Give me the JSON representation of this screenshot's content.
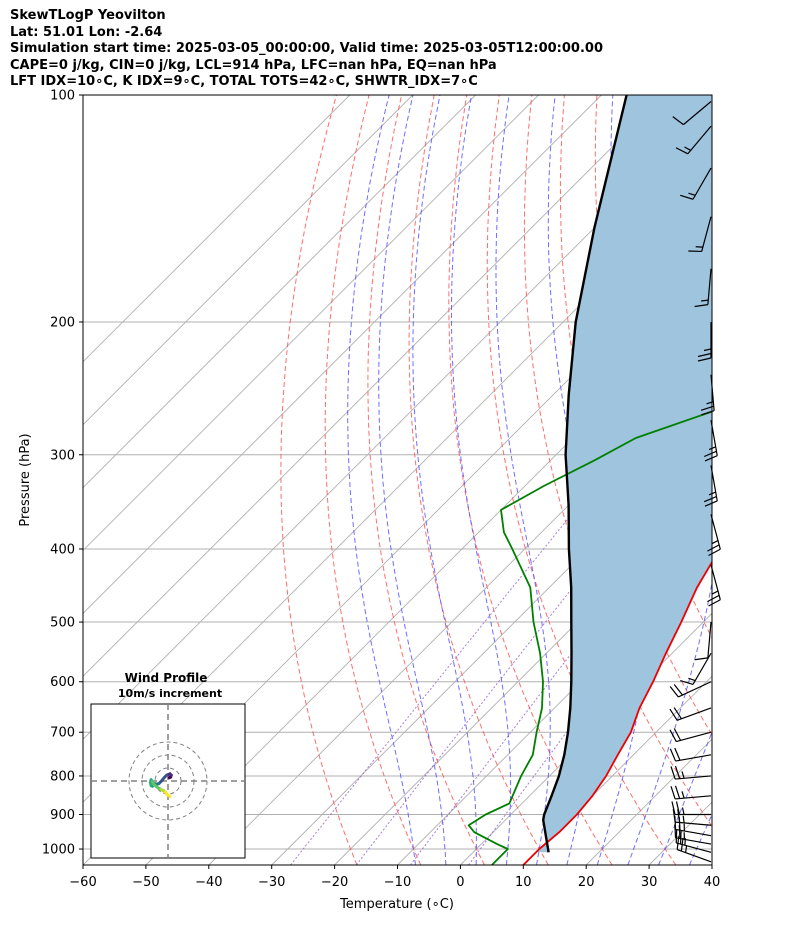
{
  "chart_data": {
    "type": "skew-t log-p",
    "title_lines": [
      "SkewTLogP Yeovilton",
      "Lat: 51.01   Lon: -2.64",
      "Simulation start time: 2025-03-05_00:00:00, Valid time: 2025-03-05T12:00:00.00",
      "CAPE=0 j/kg, CIN=0 j/kg, LCL=914 hPa, LFC=nan hPa, EQ=nan hPa",
      "LFT IDX=10∘C, K IDX=9∘C, TOTAL TOTS=42∘C, SHWTR_IDX=7∘C"
    ],
    "xlabel": "Temperature (∘C)",
    "ylabel": "Pressure (hPa)",
    "xlim": [
      -60,
      40
    ],
    "ylim_hpa": [
      1050,
      100
    ],
    "x_ticks": [
      -60,
      -50,
      -40,
      -30,
      -20,
      -10,
      0,
      10,
      20,
      30,
      40
    ],
    "y_ticks": [
      1000,
      900,
      800,
      700,
      600,
      500,
      400,
      300,
      200,
      100
    ],
    "grid": true,
    "series": [
      {
        "role": "temperature",
        "color": "#ee0000",
        "points": [
          [
            1050,
            10
          ],
          [
            1000,
            10
          ],
          [
            950,
            10.5
          ],
          [
            900,
            10.5
          ],
          [
            850,
            10
          ],
          [
            800,
            9
          ],
          [
            750,
            7.5
          ],
          [
            700,
            6
          ],
          [
            650,
            3.5
          ],
          [
            600,
            1.5
          ],
          [
            550,
            -1
          ],
          [
            500,
            -3.5
          ],
          [
            450,
            -6.5
          ],
          [
            400,
            -9
          ],
          [
            350,
            -12
          ],
          [
            300,
            -16.5
          ],
          [
            260,
            -21
          ],
          [
            230,
            -24.5
          ],
          [
            200,
            -28.5
          ],
          [
            185,
            -32.5
          ],
          [
            170,
            -37
          ],
          [
            150,
            -41
          ],
          [
            135,
            -44.5
          ],
          [
            120,
            -48
          ],
          [
            110,
            -50
          ],
          [
            100,
            -51
          ]
        ]
      },
      {
        "role": "dewpoint",
        "color": "#008000",
        "points": [
          [
            1050,
            5
          ],
          [
            1000,
            5
          ],
          [
            985,
            2.5
          ],
          [
            950,
            -3
          ],
          [
            930,
            -5
          ],
          [
            900,
            -4
          ],
          [
            870,
            -2
          ],
          [
            800,
            -4.5
          ],
          [
            750,
            -6
          ],
          [
            700,
            -9
          ],
          [
            650,
            -12
          ],
          [
            600,
            -16
          ],
          [
            550,
            -21
          ],
          [
            500,
            -27
          ],
          [
            450,
            -33
          ],
          [
            400,
            -42
          ],
          [
            380,
            -46
          ],
          [
            355,
            -50
          ],
          [
            330,
            -47
          ],
          [
            305,
            -43
          ],
          [
            285,
            -40
          ],
          [
            260,
            -31
          ],
          [
            240,
            -18.5
          ],
          [
            225,
            -21
          ],
          [
            210,
            -28
          ],
          [
            200,
            -36.5
          ],
          [
            180,
            -33.5
          ],
          [
            170,
            -34.5
          ],
          [
            155,
            -32.5
          ],
          [
            140,
            -35
          ],
          [
            120,
            -38
          ],
          [
            100,
            -41.5
          ]
        ]
      },
      {
        "role": "parcel",
        "color": "#000000",
        "points": [
          [
            1010,
            12
          ],
          [
            915,
            6
          ],
          [
            900,
            5.3
          ],
          [
            850,
            3.5
          ],
          [
            800,
            1.5
          ],
          [
            750,
            -1
          ],
          [
            700,
            -4
          ],
          [
            650,
            -7.5
          ],
          [
            600,
            -11.5
          ],
          [
            550,
            -16
          ],
          [
            500,
            -21
          ],
          [
            450,
            -26.5
          ],
          [
            400,
            -33
          ],
          [
            350,
            -40
          ],
          [
            300,
            -48.5
          ],
          [
            250,
            -57.5
          ],
          [
            200,
            -68
          ],
          [
            150,
            -80
          ],
          [
            100,
            -96
          ]
        ]
      }
    ],
    "shaded_region": "area between temperature and parcel curves",
    "dry_adiabats_theta_c": [
      -20,
      -10,
      0,
      10,
      20,
      30,
      40,
      50,
      60,
      70,
      80,
      90,
      100,
      110,
      120,
      130
    ],
    "moist_adiabats_c": [
      -10,
      -5,
      0,
      5,
      10,
      15,
      20,
      25,
      30,
      35
    ],
    "wind_barbs": [
      {
        "p": 1040,
        "knots": 25,
        "dir": 290
      },
      {
        "p": 1010,
        "knots": 25,
        "dir": 285
      },
      {
        "p": 985,
        "knots": 25,
        "dir": 280
      },
      {
        "p": 960,
        "knots": 25,
        "dir": 280
      },
      {
        "p": 930,
        "knots": 25,
        "dir": 275
      },
      {
        "p": 900,
        "knots": 25,
        "dir": 270
      },
      {
        "p": 850,
        "knots": 25,
        "dir": 265
      },
      {
        "p": 800,
        "knots": 25,
        "dir": 265
      },
      {
        "p": 750,
        "knots": 20,
        "dir": 260
      },
      {
        "p": 700,
        "knots": 20,
        "dir": 255
      },
      {
        "p": 650,
        "knots": 20,
        "dir": 250
      },
      {
        "p": 600,
        "knots": 20,
        "dir": 245
      },
      {
        "p": 550,
        "knots": 15,
        "dir": 210
      },
      {
        "p": 500,
        "knots": 10,
        "dir": 185
      },
      {
        "p": 420,
        "knots": 25,
        "dir": 165
      },
      {
        "p": 360,
        "knots": 25,
        "dir": 165
      },
      {
        "p": 310,
        "knots": 25,
        "dir": 170
      },
      {
        "p": 270,
        "knots": 25,
        "dir": 170
      },
      {
        "p": 235,
        "knots": 25,
        "dir": 175
      },
      {
        "p": 200,
        "knots": 25,
        "dir": 180
      },
      {
        "p": 170,
        "knots": 15,
        "dir": 185
      },
      {
        "p": 145,
        "knots": 15,
        "dir": 195
      },
      {
        "p": 125,
        "knots": 15,
        "dir": 210
      },
      {
        "p": 110,
        "knots": 15,
        "dir": 220
      },
      {
        "p": 102,
        "knots": 10,
        "dir": 230
      }
    ],
    "hodograph": {
      "title": "Wind Profile",
      "subtitle": "10m/s increment",
      "rings_ms": [
        10,
        20,
        30
      ],
      "points_uv": [
        [
          1.5,
          -12
        ],
        [
          -0.5,
          -10.5
        ],
        [
          -2,
          -8.5
        ],
        [
          -3.5,
          -7.5
        ],
        [
          -5.5,
          -6.5
        ],
        [
          -8,
          -5
        ],
        [
          -10.5,
          -3
        ],
        [
          -12,
          -0.5
        ],
        [
          -13,
          1
        ],
        [
          -13.5,
          -1
        ],
        [
          -13,
          -3.5
        ],
        [
          -12,
          -4
        ],
        [
          -11.5,
          -1.5
        ],
        [
          -10.5,
          -2
        ],
        [
          -8.5,
          -2.5
        ],
        [
          -7,
          -2
        ],
        [
          -5,
          0
        ],
        [
          -3,
          2.5
        ],
        [
          -1,
          4.5
        ],
        [
          1.5,
          5.5
        ],
        [
          2.5,
          4.5
        ],
        [
          2,
          3
        ],
        [
          1,
          2.5
        ]
      ]
    }
  }
}
